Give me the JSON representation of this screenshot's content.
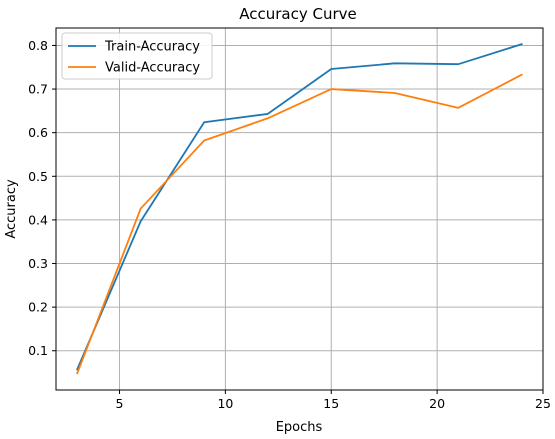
{
  "chart_data": {
    "type": "line",
    "title": "Accuracy Curve",
    "xlabel": "Epochs",
    "ylabel": "Accuracy",
    "xlim": [
      2.0,
      25.0
    ],
    "ylim": [
      0.01,
      0.84
    ],
    "xticks": [
      5,
      10,
      15,
      20,
      25
    ],
    "yticks": [
      0.1,
      0.2,
      0.3,
      0.4,
      0.5,
      0.6,
      0.7,
      0.8
    ],
    "grid": true,
    "legend_position": "top-left",
    "x": [
      3,
      6,
      9,
      12,
      15,
      18,
      21,
      24
    ],
    "series": [
      {
        "name": "Train-Accuracy",
        "color": "#1f77b4",
        "values": [
          0.057,
          0.397,
          0.624,
          0.643,
          0.746,
          0.759,
          0.757,
          0.803
        ]
      },
      {
        "name": "Valid-Accuracy",
        "color": "#ff7f0e",
        "values": [
          0.048,
          0.426,
          0.582,
          0.633,
          0.7,
          0.691,
          0.657,
          0.733
        ]
      }
    ]
  }
}
